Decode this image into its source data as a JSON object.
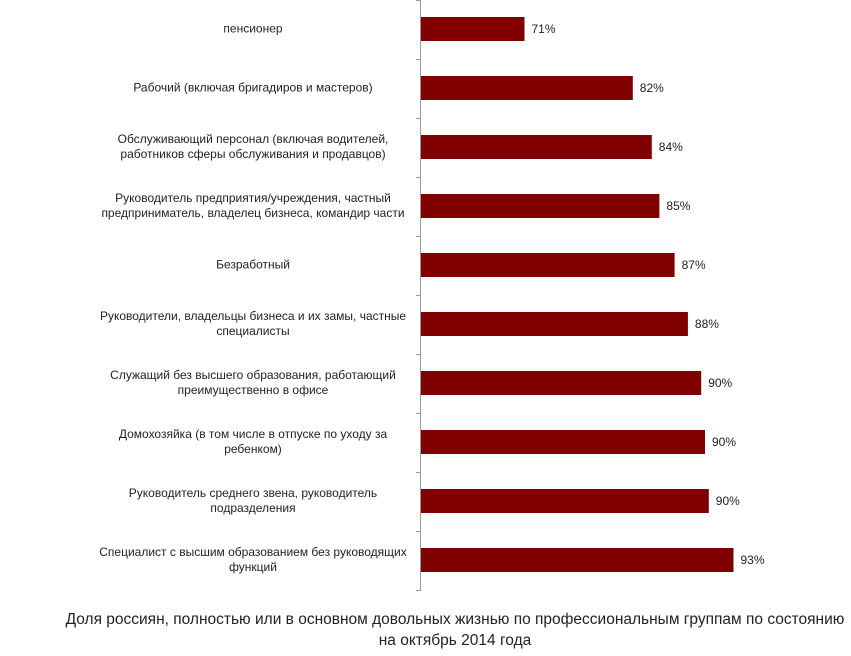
{
  "chart_data": {
    "type": "bar",
    "orientation": "horizontal",
    "title": "Доля россиян, полностью или в основном довольных жизнью по профессиональным группам по состоянию на октябрь 2014 года",
    "categories": [
      "пенсионер",
      "Рабочий (включая бригадиров и мастеров)",
      "Обслуживающий персонал (включая водителей, работников сферы обслуживания и продавцов)",
      "Руководитель предприятия/учреждения, частный предприниматель, владелец бизнеса, командир части",
      "Безработный",
      "Руководители, владельцы бизнеса и их замы, частные специалисты",
      "Служащий без высшего образования, работающий преимущественно в офисе",
      "Домохозяйка (в том числе в отпуске по уходу за ребенком)",
      "Руководитель среднего звена, руководитель подразделения",
      "Специалист с высшим образованием без руководящих функций"
    ],
    "values": [
      71,
      82.4,
      84.4,
      85.2,
      86.8,
      88.2,
      89.6,
      90.0,
      90.4,
      93
    ],
    "value_labels": [
      "71%",
      "82%",
      "84%",
      "85%",
      "87%",
      "88%",
      "90%",
      "90%",
      "90%",
      "93%"
    ],
    "color": "#800000",
    "xlim": [
      60,
      100
    ]
  }
}
